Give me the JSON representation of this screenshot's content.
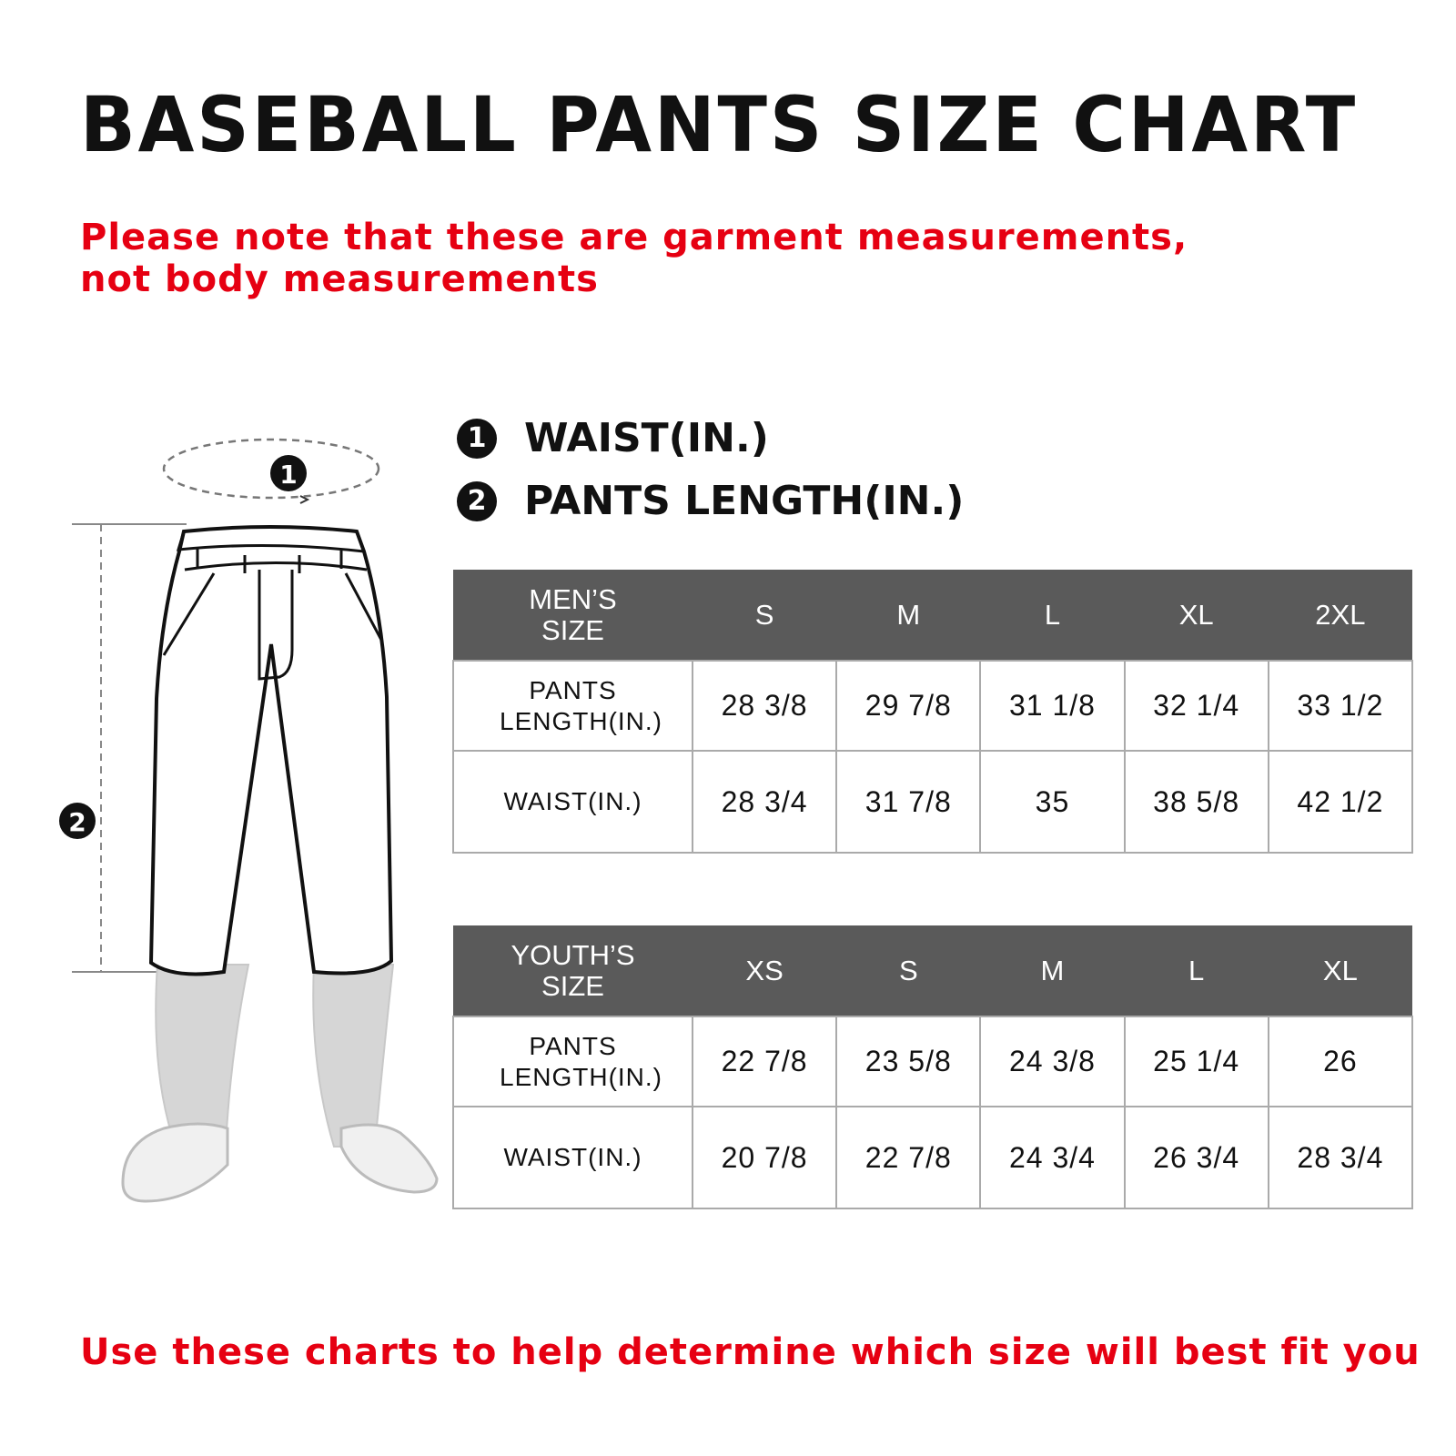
{
  "title": "BASEBALL PANTS SIZE CHART",
  "note": "Please note that these are garment measurements, not body measurements",
  "legend": [
    {
      "number": "1",
      "label": "WAIST(IN.)"
    },
    {
      "number": "2",
      "label": "PANTS LENGTH(IN.)"
    }
  ],
  "mens_table": {
    "header": [
      "MEN’S SIZE",
      "S",
      "M",
      "L",
      "XL",
      "2XL"
    ],
    "rows": [
      [
        "PANTS LENGTH(IN.)",
        "28 3/8",
        "29 7/8",
        "31 1/8",
        "32 1/4",
        "33 1/2"
      ],
      [
        "WAIST(IN.)",
        "28 3/4",
        "31 7/8",
        "35",
        "38 5/8",
        "42 1/2"
      ]
    ]
  },
  "youth_table": {
    "header": [
      "YOUTH’S SIZE",
      "XS",
      "S",
      "M",
      "L",
      "XL"
    ],
    "rows": [
      [
        "PANTS LENGTH(IN.)",
        "22 7/8",
        "23 5/8",
        "24 3/8",
        "25 1/4",
        "26"
      ],
      [
        "WAIST(IN.)",
        "20 7/8",
        "22 7/8",
        "24 3/4",
        "26 3/4",
        "28 3/4"
      ]
    ]
  },
  "diagram_markers": [
    "1",
    "2"
  ],
  "footer": "Use these charts to help determine which size will best fit you",
  "colors": {
    "accent_red": "#e60012",
    "table_header": "#5a5a5a"
  }
}
